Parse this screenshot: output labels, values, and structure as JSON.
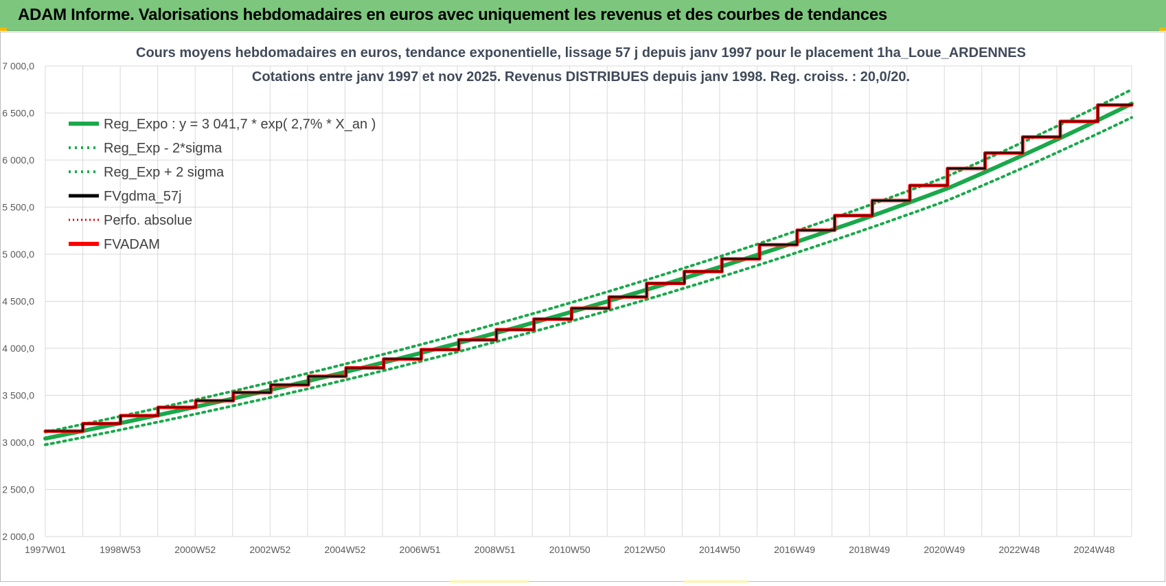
{
  "header": {
    "title": "ADAM Informe. Valorisations hebdomadaires en euros avec uniquement les revenus et des courbes de tendances"
  },
  "chart_data": {
    "type": "line",
    "title": "Cours moyens hebdomadaires en euros, tendance exponentielle, lissage 57 j depuis janv 1997  pour le placement 1ha_Loue_ARDENNES",
    "subtitle": "Cotations entre janv 1997 et nov 2025. Revenus  DISTRIBUES depuis janv 1998.  Reg. croiss. : 20,0/20.",
    "xlabel": "",
    "ylabel": "",
    "ylim": [
      2000,
      7000
    ],
    "yticks": [
      "2 000,0",
      "2 500,0",
      "3 000,0",
      "3 500,0",
      "4 000,0",
      "4 500,0",
      "5 000,0",
      "5 500,0",
      "6 000,0",
      "6 500,0",
      "7 000,0"
    ],
    "xticks": [
      "1997W01",
      "1998W53",
      "2000W52",
      "2002W52",
      "2004W52",
      "2006W51",
      "2008W51",
      "2010W50",
      "2012W50",
      "2014W50",
      "2016W49",
      "2018W49",
      "2020W49",
      "2022W48",
      "2024W48"
    ],
    "x_range_years": [
      1997.0,
      2025.9
    ],
    "grid": true,
    "legend_position": "top-left",
    "series": [
      {
        "name": "Reg_Expo : y = 3 041,7 * exp( 2,7% *  X_an )",
        "style": "solid",
        "color": "#1aa84b",
        "x": [
          1997,
          2001,
          2005,
          2009,
          2013,
          2017,
          2021,
          2025.9
        ],
        "values": [
          3041.7,
          3378,
          3750,
          4164,
          4623,
          5133,
          5699,
          6599
        ]
      },
      {
        "name": "Reg_Exp - 2*sigma",
        "style": "dotted",
        "color": "#1aa84b",
        "x": [
          1997,
          2001,
          2005,
          2009,
          2013,
          2017,
          2021,
          2025.9
        ],
        "values": [
          2975,
          3302,
          3666,
          4071,
          4520,
          5018,
          5572,
          6452
        ]
      },
      {
        "name": "Reg_Exp + 2 sigma",
        "style": "dotted",
        "color": "#1aa84b",
        "x": [
          1997,
          2001,
          2005,
          2009,
          2013,
          2017,
          2021,
          2025.9
        ],
        "values": [
          3110,
          3454,
          3835,
          4259,
          4728,
          5250,
          5829,
          6749
        ]
      },
      {
        "name": "FVgdma_57j",
        "style": "solid",
        "color": "#000000",
        "x": [
          1997,
          1998,
          1999,
          2000,
          2001,
          2002,
          2003,
          2004,
          2005,
          2006,
          2007,
          2008,
          2009,
          2010,
          2011,
          2012,
          2013,
          2014,
          2015,
          2016,
          2017,
          2018,
          2019,
          2020,
          2021,
          2022,
          2023,
          2024,
          2025,
          2025.9
        ],
        "values": [
          3120,
          3200,
          3285,
          3372,
          3443,
          3530,
          3612,
          3703,
          3792,
          3886,
          3986,
          4090,
          4198,
          4310,
          4425,
          4545,
          4690,
          4815,
          4950,
          5100,
          5255,
          5410,
          5570,
          5730,
          5910,
          6075,
          6245,
          6410,
          6585,
          6590
        ]
      },
      {
        "name": "Perfo. absolue",
        "style": "dotted",
        "color": "#e00000",
        "x": [
          1997,
          1998,
          1999,
          2000,
          2001,
          2002,
          2003,
          2004,
          2005,
          2006,
          2007,
          2008,
          2009,
          2010,
          2011,
          2012,
          2013,
          2014,
          2015,
          2016,
          2017,
          2018,
          2019,
          2020,
          2021,
          2022,
          2023,
          2024,
          2025,
          2025.9
        ],
        "values": [
          3120,
          3200,
          3285,
          3372,
          3443,
          3530,
          3612,
          3703,
          3792,
          3886,
          3986,
          4090,
          4198,
          4310,
          4425,
          4545,
          4690,
          4815,
          4950,
          5100,
          5255,
          5410,
          5570,
          5730,
          5910,
          6075,
          6245,
          6410,
          6585,
          6590
        ]
      },
      {
        "name": "FVADAM",
        "style": "solid",
        "color": "#ff0000",
        "x": [
          1997,
          1998,
          1999,
          2000,
          2001,
          2002,
          2003,
          2004,
          2005,
          2006,
          2007,
          2008,
          2009,
          2010,
          2011,
          2012,
          2013,
          2014,
          2015,
          2016,
          2017,
          2018,
          2019,
          2020,
          2021,
          2022,
          2023,
          2024,
          2025,
          2025.9
        ],
        "values": [
          3120,
          3200,
          3285,
          3372,
          3443,
          3530,
          3612,
          3703,
          3792,
          3886,
          3986,
          4090,
          4198,
          4310,
          4425,
          4545,
          4690,
          4815,
          4950,
          5100,
          5255,
          5410,
          5570,
          5730,
          5910,
          6075,
          6245,
          6410,
          6585,
          6590
        ]
      }
    ]
  }
}
